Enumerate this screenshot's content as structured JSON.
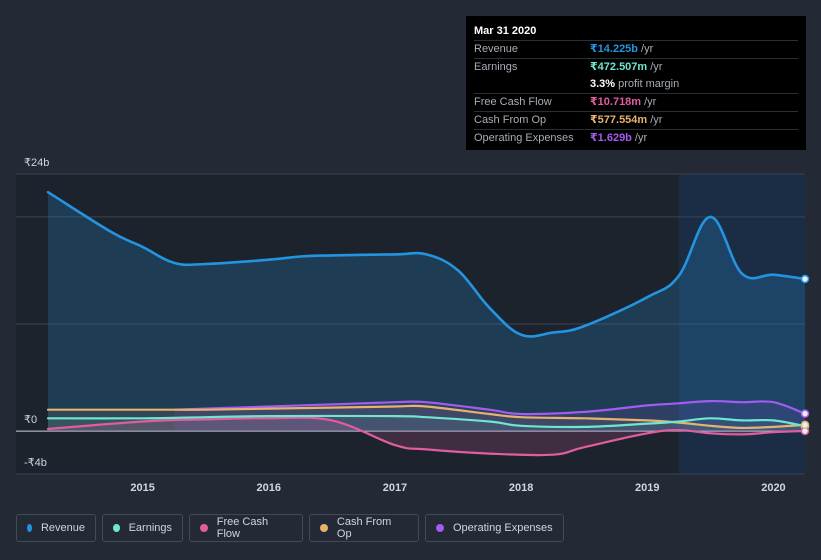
{
  "tooltip": {
    "date": "Mar 31 2020",
    "rows": [
      {
        "label": "Revenue",
        "value": "₹14.225b",
        "unit": "/yr",
        "color": "#2394df"
      },
      {
        "label": "Earnings",
        "value": "₹472.507m",
        "unit": "/yr",
        "color": "#6ee6d0"
      },
      {
        "label": "",
        "value": "3.3%",
        "unit": "profit margin",
        "color": "#ffffff"
      },
      {
        "label": "Free Cash Flow",
        "value": "₹10.718m",
        "unit": "/yr",
        "color": "#e05da0"
      },
      {
        "label": "Cash From Op",
        "value": "₹577.554m",
        "unit": "/yr",
        "color": "#e6b26d"
      },
      {
        "label": "Operating Expenses",
        "value": "₹1.629b",
        "unit": "/yr",
        "color": "#a35cf0"
      }
    ]
  },
  "chart_data": {
    "type": "area",
    "ylabel_ticks": [
      "₹24b",
      "₹0",
      "-₹4b"
    ],
    "ylim": [
      -4,
      24
    ],
    "xlim": [
      2014.25,
      2020.25
    ],
    "x_ticks": [
      "2015",
      "2016",
      "2017",
      "2018",
      "2019",
      "2020"
    ],
    "x_tick_values": [
      2015,
      2016,
      2017,
      2018,
      2019,
      2020
    ],
    "highlight_from": 2019.25,
    "grid": true,
    "series": [
      {
        "name": "Revenue",
        "color": "#2394df",
        "points": [
          [
            2014.25,
            22.3
          ],
          [
            2014.75,
            18.6
          ],
          [
            2015.0,
            17.2
          ],
          [
            2015.25,
            15.7
          ],
          [
            2015.5,
            15.6
          ],
          [
            2016.0,
            16.0
          ],
          [
            2016.25,
            16.3
          ],
          [
            2016.5,
            16.4
          ],
          [
            2017.0,
            16.5
          ],
          [
            2017.25,
            16.5
          ],
          [
            2017.5,
            15.0
          ],
          [
            2017.75,
            11.5
          ],
          [
            2018.0,
            9.0
          ],
          [
            2018.25,
            9.2
          ],
          [
            2018.5,
            9.8
          ],
          [
            2019.0,
            12.5
          ],
          [
            2019.25,
            14.5
          ],
          [
            2019.5,
            20.0
          ],
          [
            2019.75,
            14.7
          ],
          [
            2020.0,
            14.6
          ],
          [
            2020.25,
            14.2
          ]
        ]
      },
      {
        "name": "Earnings",
        "color": "#6ee6d0",
        "points": [
          [
            2014.25,
            1.2
          ],
          [
            2015.0,
            1.2
          ],
          [
            2015.5,
            1.3
          ],
          [
            2016.0,
            1.4
          ],
          [
            2017.0,
            1.4
          ],
          [
            2017.25,
            1.3
          ],
          [
            2017.75,
            0.9
          ],
          [
            2018.0,
            0.5
          ],
          [
            2018.5,
            0.4
          ],
          [
            2019.0,
            0.7
          ],
          [
            2019.25,
            0.9
          ],
          [
            2019.5,
            1.2
          ],
          [
            2019.75,
            1.0
          ],
          [
            2020.0,
            1.0
          ],
          [
            2020.25,
            0.47
          ]
        ]
      },
      {
        "name": "Free Cash Flow",
        "color": "#e05da0",
        "points": [
          [
            2014.25,
            0.2
          ],
          [
            2015.0,
            0.9
          ],
          [
            2015.5,
            1.1
          ],
          [
            2016.0,
            1.2
          ],
          [
            2016.5,
            1.0
          ],
          [
            2017.0,
            -1.3
          ],
          [
            2017.25,
            -1.7
          ],
          [
            2017.75,
            -2.1
          ],
          [
            2018.25,
            -2.2
          ],
          [
            2018.5,
            -1.5
          ],
          [
            2019.0,
            -0.2
          ],
          [
            2019.25,
            0.1
          ],
          [
            2019.5,
            -0.2
          ],
          [
            2019.75,
            -0.3
          ],
          [
            2020.0,
            -0.1
          ],
          [
            2020.25,
            0.01
          ]
        ]
      },
      {
        "name": "Cash From Op",
        "color": "#e6b26d",
        "points": [
          [
            2014.25,
            2.0
          ],
          [
            2015.0,
            2.0
          ],
          [
            2015.25,
            2.0
          ],
          [
            2015.5,
            2.0
          ],
          [
            2016.0,
            2.1
          ],
          [
            2016.5,
            2.2
          ],
          [
            2017.0,
            2.3
          ],
          [
            2017.25,
            2.3
          ],
          [
            2017.75,
            1.6
          ],
          [
            2018.0,
            1.3
          ],
          [
            2018.5,
            1.2
          ],
          [
            2019.0,
            1.0
          ],
          [
            2019.25,
            0.8
          ],
          [
            2019.5,
            0.5
          ],
          [
            2019.75,
            0.3
          ],
          [
            2020.0,
            0.4
          ],
          [
            2020.25,
            0.58
          ]
        ]
      },
      {
        "name": "Operating Expenses",
        "color": "#a35cf0",
        "points": [
          [
            2015.25,
            2.0
          ],
          [
            2015.5,
            2.1
          ],
          [
            2016.0,
            2.3
          ],
          [
            2016.5,
            2.5
          ],
          [
            2017.0,
            2.7
          ],
          [
            2017.25,
            2.7
          ],
          [
            2017.75,
            2.0
          ],
          [
            2018.0,
            1.6
          ],
          [
            2018.5,
            1.8
          ],
          [
            2019.0,
            2.4
          ],
          [
            2019.25,
            2.6
          ],
          [
            2019.5,
            2.8
          ],
          [
            2019.75,
            2.7
          ],
          [
            2020.0,
            2.7
          ],
          [
            2020.25,
            1.63
          ]
        ]
      }
    ]
  },
  "legend": [
    {
      "label": "Revenue",
      "color": "#2394df",
      "icon": "dot-icon"
    },
    {
      "label": "Earnings",
      "color": "#6ee6d0",
      "icon": "dot-icon"
    },
    {
      "label": "Free Cash Flow",
      "color": "#e05da0",
      "icon": "dot-icon"
    },
    {
      "label": "Cash From Op",
      "color": "#e6b26d",
      "icon": "dot-icon"
    },
    {
      "label": "Operating Expenses",
      "color": "#a35cf0",
      "icon": "dot-icon"
    }
  ]
}
